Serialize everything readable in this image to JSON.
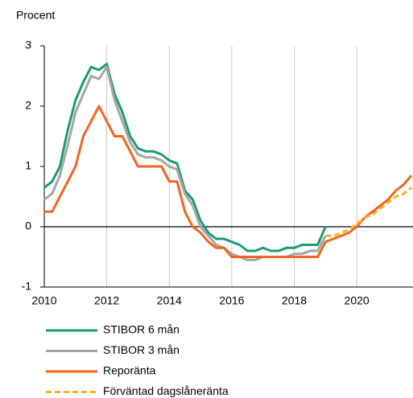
{
  "chart_data": {
    "type": "line",
    "y_label": "Procent",
    "x": [
      2010,
      2010.25,
      2010.5,
      2010.75,
      2011,
      2011.25,
      2011.5,
      2011.75,
      2012,
      2012.25,
      2012.5,
      2012.75,
      2013,
      2013.25,
      2013.5,
      2013.75,
      2014,
      2014.25,
      2014.5,
      2014.75,
      2015,
      2015.25,
      2015.5,
      2015.75,
      2016,
      2016.25,
      2016.5,
      2016.75,
      2017,
      2017.25,
      2017.5,
      2017.75,
      2018,
      2018.25,
      2018.5,
      2018.75,
      2019,
      2019.25,
      2019.5,
      2019.75,
      2020,
      2020.25,
      2020.5,
      2020.75,
      2021,
      2021.25,
      2021.5,
      2021.75
    ],
    "series": [
      {
        "name": "STIBOR 6 mån",
        "color": "#1b9c74",
        "dash": false,
        "values": [
          0.65,
          0.75,
          1.0,
          1.6,
          2.1,
          2.4,
          2.65,
          2.6,
          2.7,
          2.2,
          1.9,
          1.5,
          1.3,
          1.25,
          1.25,
          1.2,
          1.1,
          1.05,
          0.6,
          0.45,
          0.1,
          -0.1,
          -0.2,
          -0.2,
          -0.25,
          -0.3,
          -0.4,
          -0.4,
          -0.35,
          -0.4,
          -0.4,
          -0.35,
          -0.35,
          -0.3,
          -0.3,
          -0.3,
          0.0,
          null,
          null,
          null,
          null,
          null,
          null,
          null,
          null,
          null,
          null,
          null
        ]
      },
      {
        "name": "STIBOR 3 mån",
        "color": "#a6a6a6",
        "dash": false,
        "values": [
          0.45,
          0.55,
          0.85,
          1.35,
          1.9,
          2.2,
          2.5,
          2.45,
          2.65,
          2.1,
          1.75,
          1.4,
          1.2,
          1.15,
          1.15,
          1.1,
          1.0,
          0.95,
          0.55,
          0.35,
          0.0,
          -0.15,
          -0.3,
          -0.35,
          -0.45,
          -0.5,
          -0.55,
          -0.55,
          -0.5,
          -0.5,
          -0.5,
          -0.5,
          -0.45,
          -0.45,
          -0.4,
          -0.4,
          -0.15,
          null,
          null,
          null,
          null,
          null,
          null,
          null,
          null,
          null,
          null,
          null
        ]
      },
      {
        "name": "Reporänta",
        "color": "#f26522",
        "dash": false,
        "values": [
          0.25,
          0.25,
          0.5,
          0.75,
          1.0,
          1.5,
          1.75,
          2.0,
          1.75,
          1.5,
          1.5,
          1.25,
          1.0,
          1.0,
          1.0,
          1.0,
          0.75,
          0.75,
          0.25,
          0.0,
          -0.1,
          -0.25,
          -0.35,
          -0.35,
          -0.5,
          -0.5,
          -0.5,
          -0.5,
          -0.5,
          -0.5,
          -0.5,
          -0.5,
          -0.5,
          -0.5,
          -0.5,
          -0.5,
          -0.25,
          -0.2,
          -0.15,
          -0.1,
          0.0,
          0.15,
          0.25,
          0.35,
          0.45,
          0.6,
          0.7,
          0.85
        ]
      },
      {
        "name": "Förväntad dagslåneränta",
        "color": "#fbb324",
        "dash": true,
        "values": [
          null,
          null,
          null,
          null,
          null,
          null,
          null,
          null,
          null,
          null,
          null,
          null,
          null,
          null,
          null,
          null,
          null,
          null,
          null,
          null,
          null,
          null,
          null,
          null,
          null,
          null,
          null,
          null,
          null,
          null,
          null,
          null,
          null,
          null,
          null,
          null,
          -0.15,
          -0.15,
          -0.1,
          -0.05,
          0.05,
          0.15,
          0.2,
          0.3,
          0.4,
          0.5,
          0.55,
          0.65
        ]
      }
    ],
    "xlim": [
      2010,
      2021.8
    ],
    "xticks": [
      2010,
      2012,
      2014,
      2016,
      2018,
      2020
    ],
    "ylim": [
      -1,
      3
    ],
    "yticks": [
      -1,
      0,
      1,
      2,
      3
    ],
    "grid": true
  }
}
